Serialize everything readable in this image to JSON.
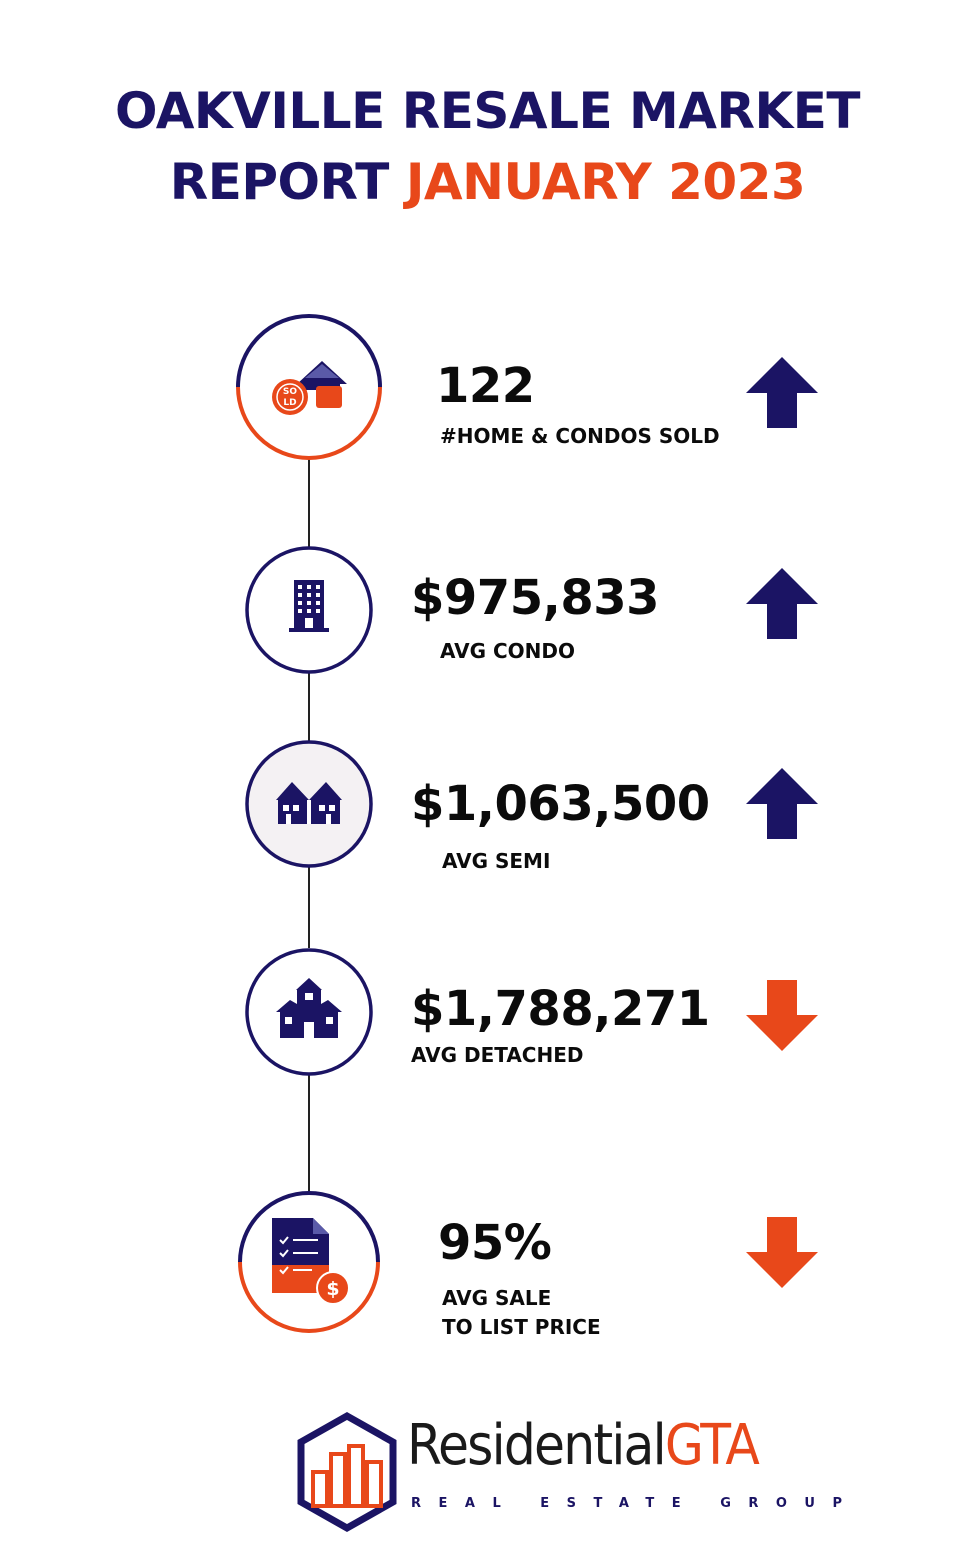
{
  "title": {
    "line1": "OAKVILLE RESALE MARKET",
    "line2_part1": "REPORT",
    "line2_part2": "JANUARY 2023"
  },
  "colors": {
    "navy": "#1b1464",
    "orange": "#e8481a",
    "text": "#0b0b0b"
  },
  "stats": [
    {
      "value": "122",
      "label1": "#HOME & CONDOS SOLD",
      "label2": "",
      "icon": "sold-house-icon",
      "trend": "up"
    },
    {
      "value": "$975,833",
      "label1": "AVG CONDO",
      "label2": "",
      "icon": "condo-building-icon",
      "trend": "up"
    },
    {
      "value": "$1,063,500",
      "label1": "AVG SEMI",
      "label2": "",
      "icon": "semi-detached-icon",
      "trend": "up"
    },
    {
      "value": "$1,788,271",
      "label1": "AVG DETACHED",
      "label2": "",
      "icon": "detached-house-icon",
      "trend": "down"
    },
    {
      "value": "95%",
      "label1": "AVG SALE",
      "label2": "TO LIST PRICE",
      "icon": "checklist-dollar-icon",
      "trend": "down"
    }
  ],
  "logo": {
    "brand_main": "Residential",
    "brand_accent": "GTA",
    "tagline": "REAL ESTATE GROUP"
  }
}
